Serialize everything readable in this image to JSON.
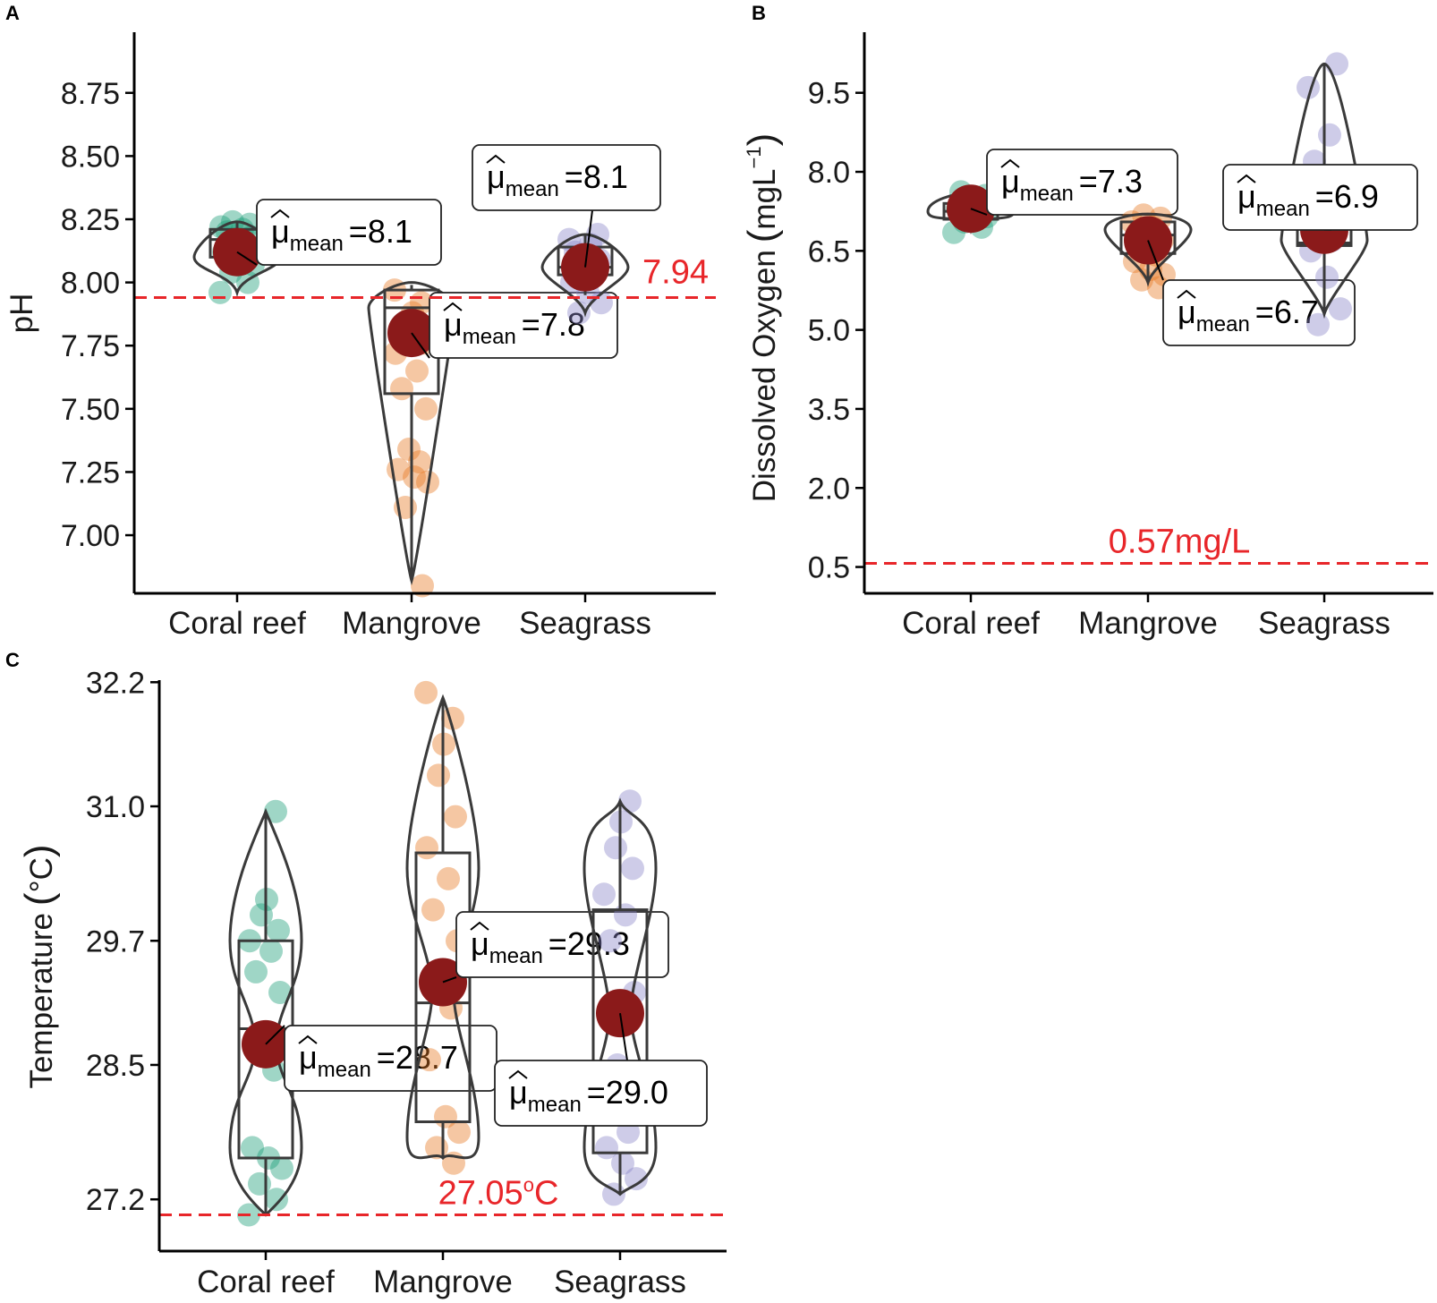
{
  "figure": {
    "colors": {
      "coral_reef": "#1b9e77",
      "mangrove": "#e87a24",
      "seagrass": "#8a86c9",
      "mean_point": "#8b1a1a",
      "reference_line": "#e8262a",
      "outline": "#3a3a3a"
    }
  },
  "chart_data": [
    {
      "panel": "A",
      "type": "violin-box-jitter",
      "ylabel": "pH",
      "categories": [
        "Coral reef",
        "Mangrove",
        "Seagrass"
      ],
      "ylim": [
        6.77,
        8.99
      ],
      "yticks": [
        7.0,
        7.25,
        7.5,
        7.75,
        8.0,
        8.25,
        8.5,
        8.75
      ],
      "ytick_labels": [
        "7.00",
        "7.25",
        "7.50",
        "7.75",
        "8.00",
        "8.25",
        "8.50",
        "8.75"
      ],
      "reference_line": {
        "value": 7.94,
        "label": "7.94"
      },
      "mean_annotation_prefix": "μ",
      "mean_annotation_sub": "mean",
      "groups": [
        {
          "name": "Coral reef",
          "color_key": "coral_reef",
          "mean": 8.12,
          "mean_label": "8.1",
          "box": {
            "q1": 8.1,
            "median": 8.17,
            "q3": 8.21,
            "whisker_low": 8.03,
            "whisker_high": 8.24
          },
          "violin": {
            "min": 7.96,
            "max": 8.24,
            "peak": 8.1
          },
          "points": [
            7.96,
            8.0,
            8.04,
            8.07,
            8.1,
            8.12,
            8.15,
            8.17,
            8.18,
            8.2,
            8.21,
            8.22,
            8.23,
            8.24
          ]
        },
        {
          "name": "Mangrove",
          "color_key": "mangrove",
          "mean": 7.8,
          "mean_label": "7.8",
          "box": {
            "q1": 7.56,
            "median": 7.9,
            "q3": 7.97,
            "whisker_low": 6.82,
            "whisker_high": 7.99
          },
          "violin": {
            "min": 6.82,
            "max": 8.0,
            "peak": 7.9
          },
          "points": [
            6.8,
            7.11,
            7.21,
            7.23,
            7.26,
            7.29,
            7.34,
            7.5,
            7.58,
            7.65,
            7.72,
            7.76,
            7.84,
            7.88,
            7.92,
            7.97
          ]
        },
        {
          "name": "Seagrass",
          "color_key": "seagrass",
          "mean": 8.06,
          "mean_label": "8.1",
          "box": {
            "q1": 8.03,
            "median": 8.06,
            "q3": 8.14,
            "whisker_low": 7.95,
            "whisker_high": 8.19
          },
          "violin": {
            "min": 7.88,
            "max": 8.19,
            "peak": 8.06
          },
          "points": [
            7.88,
            7.92,
            7.96,
            8.0,
            8.03,
            8.06,
            8.09,
            8.12,
            8.15,
            8.17,
            8.19
          ]
        }
      ]
    },
    {
      "panel": "B",
      "type": "violin-box-jitter",
      "ylabel": "Dissolved Oxygen (mgL⁻¹)",
      "ylabel_main": "Dissolved Oxygen",
      "ylabel_unit": "mgL",
      "ylabel_exp": "−1",
      "categories": [
        "Coral reef",
        "Mangrove",
        "Seagrass"
      ],
      "ylim": [
        0.0,
        10.65
      ],
      "yticks": [
        0.5,
        2.0,
        3.5,
        5.0,
        6.5,
        8.0,
        9.5
      ],
      "ytick_labels": [
        "0.5",
        "2.0",
        "3.5",
        "5.0",
        "6.5",
        "8.0",
        "9.5"
      ],
      "reference_line": {
        "value": 0.57,
        "label": "0.57mg/L"
      },
      "mean_annotation_prefix": "μ",
      "mean_annotation_sub": "mean",
      "groups": [
        {
          "name": "Coral reef",
          "color_key": "coral_reef",
          "mean": 7.3,
          "mean_label": "7.3",
          "box": {
            "q1": 7.1,
            "median": 7.25,
            "q3": 7.4,
            "whisker_low": 6.95,
            "whisker_high": 7.55
          },
          "violin": {
            "min": 6.9,
            "max": 7.6,
            "peak": 7.25
          },
          "points": [
            6.85,
            6.95,
            7.05,
            7.15,
            7.22,
            7.3,
            7.38,
            7.45,
            7.55,
            7.62
          ]
        },
        {
          "name": "Mangrove",
          "color_key": "mangrove",
          "mean": 6.7,
          "mean_label": "6.7",
          "box": {
            "q1": 6.45,
            "median": 6.8,
            "q3": 7.05,
            "whisker_low": 5.95,
            "whisker_high": 7.15
          },
          "violin": {
            "min": 5.9,
            "max": 7.2,
            "peak": 6.9
          },
          "points": [
            5.8,
            5.95,
            6.05,
            6.15,
            6.3,
            6.42,
            6.55,
            6.7,
            6.85,
            6.95,
            7.05,
            7.12,
            7.18
          ]
        },
        {
          "name": "Seagrass",
          "color_key": "seagrass",
          "mean": 6.9,
          "mean_label": "6.9",
          "box": {
            "q1": 6.6,
            "median": 6.65,
            "q3": 7.0,
            "whisker_low": 5.3,
            "whisker_high": 10.05
          },
          "violin": {
            "min": 5.3,
            "max": 10.05,
            "peak": 6.7
          },
          "points": [
            5.1,
            5.4,
            6.0,
            6.5,
            6.7,
            7.0,
            7.4,
            8.2,
            8.7,
            9.6,
            10.05
          ]
        }
      ]
    },
    {
      "panel": "C",
      "type": "violin-box-jitter",
      "ylabel": "Temperature (°C)",
      "ylabel_main": "Temperature",
      "ylabel_unit": "°C",
      "categories": [
        "Coral reef",
        "Mangrove",
        "Seagrass"
      ],
      "ylim": [
        26.7,
        32.22
      ],
      "yticks": [
        27.2,
        28.5,
        29.7,
        31.0,
        32.2
      ],
      "ytick_labels": [
        "27.2",
        "28.5",
        "29.7",
        "31.0",
        "32.2"
      ],
      "reference_line": {
        "value": 27.05,
        "label": "27.05°C",
        "label_main": "27.05",
        "label_sup": "o",
        "label_unit": "C"
      },
      "mean_annotation_prefix": "μ",
      "mean_annotation_sub": "mean",
      "groups": [
        {
          "name": "Coral reef",
          "color_key": "coral_reef",
          "mean": 28.7,
          "mean_label": "28.7",
          "box": {
            "q1": 27.6,
            "median": 28.85,
            "q3": 29.7,
            "whisker_low": 27.05,
            "whisker_high": 30.95
          },
          "violin": {
            "min": 27.05,
            "max": 30.95,
            "bulge_low": 27.7,
            "bulge_high": 29.7,
            "waist": 28.7
          },
          "points": [
            27.05,
            27.2,
            27.35,
            27.5,
            27.6,
            27.7,
            28.45,
            28.8,
            29.2,
            29.4,
            29.6,
            29.7,
            29.8,
            29.95,
            30.1,
            30.95
          ]
        },
        {
          "name": "Mangrove",
          "color_key": "mangrove",
          "mean": 29.3,
          "mean_label": "29.3",
          "box": {
            "q1": 27.95,
            "median": 29.1,
            "q3": 30.55,
            "whisker_low": 27.6,
            "whisker_high": 32.05
          },
          "violin": {
            "min": 27.6,
            "max": 32.05,
            "bulge_low": 27.8,
            "bulge_high": 30.4,
            "waist": 29.2
          },
          "points": [
            27.55,
            27.7,
            27.85,
            28.0,
            28.55,
            29.05,
            29.3,
            29.7,
            30.0,
            30.3,
            30.6,
            30.9,
            31.3,
            31.6,
            31.85,
            32.1
          ]
        },
        {
          "name": "Seagrass",
          "color_key": "seagrass",
          "mean": 29.0,
          "mean_label": "29.0",
          "box": {
            "q1": 27.65,
            "median": 28.5,
            "q3": 30.0,
            "whisker_low": 27.25,
            "whisker_high": 31.05
          },
          "violin": {
            "min": 27.25,
            "max": 31.05,
            "bulge_low": 27.7,
            "bulge_high": 30.4,
            "waist": 29.0
          },
          "points": [
            27.25,
            27.4,
            27.55,
            27.7,
            27.85,
            28.5,
            29.2,
            29.7,
            29.95,
            30.15,
            30.4,
            30.6,
            30.85,
            31.05
          ]
        }
      ]
    }
  ]
}
